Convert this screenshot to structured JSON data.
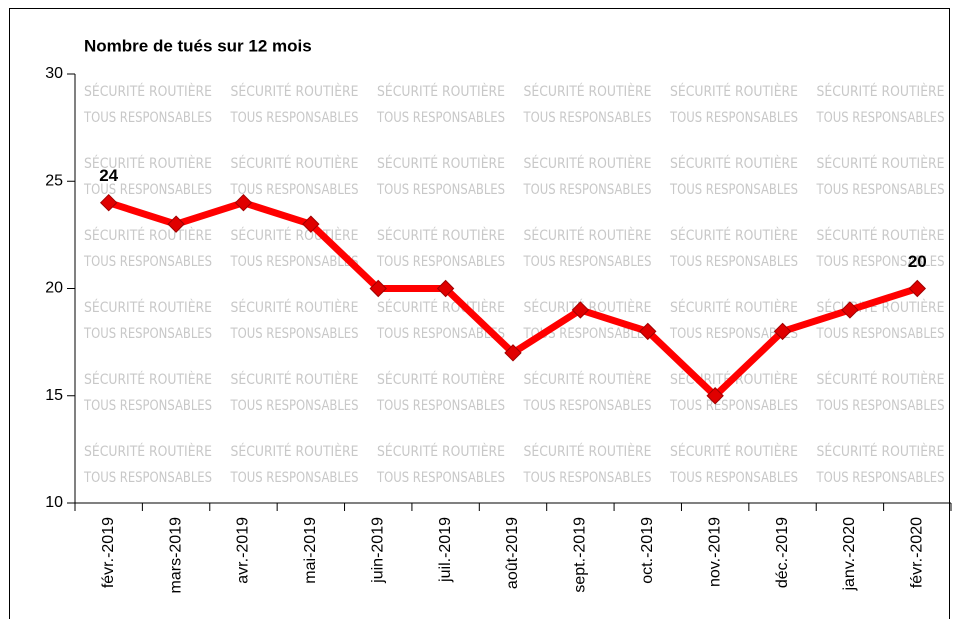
{
  "chart_data": {
    "type": "line",
    "title": "Nombre de tués sur 12 mois",
    "watermark": [
      "SÉCURITÉ ROUTIÈRE",
      "TOUS RESPONSABLES"
    ],
    "categories": [
      "févr.-2019",
      "mars-2019",
      "avr.-2019",
      "mai-2019",
      "juin-2019",
      "juil.-2019",
      "août-2019",
      "sept.-2019",
      "oct.-2019",
      "nov.-2019",
      "déc.-2019",
      "janv.-2020",
      "févr.-2020"
    ],
    "series": [
      {
        "name": "Nombre de tués",
        "color": "#ff0000",
        "values": [
          24,
          23,
          24,
          23,
          20,
          20,
          17,
          19,
          18,
          15,
          18,
          19,
          20
        ],
        "value_labels": [
          "24",
          null,
          null,
          null,
          null,
          null,
          null,
          null,
          null,
          null,
          null,
          null,
          "20"
        ]
      }
    ],
    "ylim": [
      10,
      30
    ],
    "yticks": [
      10,
      15,
      20,
      25,
      30
    ],
    "grid": false,
    "legend": false
  }
}
